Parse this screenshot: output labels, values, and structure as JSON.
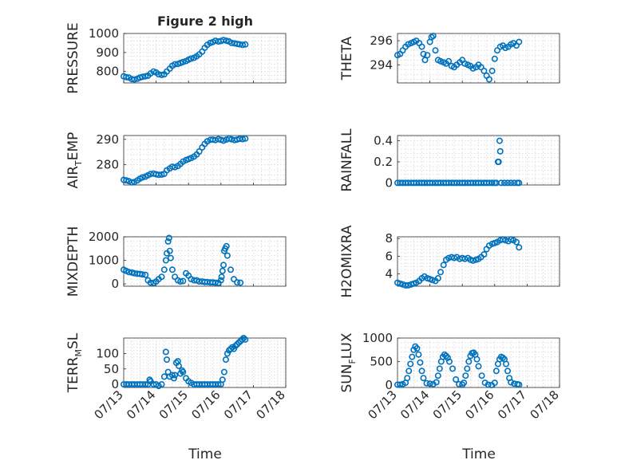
{
  "figure": {
    "title": "Figure 2 high",
    "date_ticks": [
      "07/13",
      "07/14",
      "07/15",
      "07/16",
      "07/17",
      "07/18"
    ],
    "xlabel": "Time"
  },
  "chart_data": [
    {
      "type": "scatter",
      "title": "Figure 2 high",
      "ylabel": "PRESSURE",
      "ylim": [
        740,
        1000
      ],
      "yticks": [
        800,
        900,
        1000
      ],
      "xlim": [
        "07/13",
        "07/18"
      ],
      "grid": true,
      "x": [
        0.0,
        0.08,
        0.16,
        0.25,
        0.33,
        0.42,
        0.5,
        0.58,
        0.67,
        0.75,
        0.83,
        0.92,
        1.0,
        1.08,
        1.17,
        1.25,
        1.33,
        1.42,
        1.5,
        1.58,
        1.67,
        1.75,
        1.83,
        1.92,
        2.0,
        2.08,
        2.17,
        2.25,
        2.33,
        2.42,
        2.5,
        2.58,
        2.67,
        2.75,
        2.83,
        2.92,
        3.0,
        3.08,
        3.17,
        3.25,
        3.33,
        3.42,
        3.5,
        3.58,
        3.67,
        3.75
      ],
      "y": [
        775,
        770,
        768,
        760,
        758,
        762,
        768,
        772,
        775,
        778,
        790,
        800,
        795,
        785,
        782,
        785,
        800,
        815,
        830,
        838,
        840,
        845,
        850,
        855,
        862,
        868,
        872,
        880,
        890,
        905,
        925,
        940,
        950,
        955,
        962,
        958,
        960,
        965,
        962,
        958,
        950,
        948,
        945,
        943,
        940,
        942
      ]
    },
    {
      "type": "scatter",
      "title": "",
      "ylabel": "THETA",
      "ylim": [
        292.5,
        296.6
      ],
      "yticks": [
        294,
        296
      ],
      "xlim": [
        "07/13",
        "07/18"
      ],
      "grid": true,
      "x": [
        0.0,
        0.08,
        0.16,
        0.25,
        0.33,
        0.42,
        0.5,
        0.58,
        0.67,
        0.75,
        0.8,
        0.85,
        0.92,
        1.0,
        1.05,
        1.1,
        1.17,
        1.25,
        1.33,
        1.42,
        1.5,
        1.58,
        1.67,
        1.75,
        1.83,
        1.92,
        2.0,
        2.08,
        2.17,
        2.25,
        2.33,
        2.42,
        2.5,
        2.58,
        2.67,
        2.75,
        2.83,
        2.92,
        3.0,
        3.08,
        3.17,
        3.25,
        3.33,
        3.42,
        3.5,
        3.58,
        3.67,
        3.75
      ],
      "y": [
        294.8,
        294.9,
        295.2,
        295.5,
        295.7,
        295.8,
        295.9,
        296.0,
        295.8,
        295.5,
        294.9,
        294.4,
        294.8,
        295.9,
        296.3,
        296.4,
        295.2,
        294.4,
        294.3,
        294.2,
        294.1,
        294.3,
        293.9,
        293.8,
        294.0,
        294.2,
        294.4,
        294.1,
        294.0,
        293.9,
        293.7,
        293.8,
        294.0,
        293.8,
        293.5,
        293.1,
        292.8,
        293.5,
        294.5,
        295.2,
        295.5,
        295.6,
        295.4,
        295.5,
        295.7,
        295.8,
        295.6,
        295.9
      ]
    },
    {
      "type": "scatter",
      "title": "",
      "ylabel": "AIR_TEMP",
      "ylim": [
        272,
        291.5
      ],
      "yticks": [
        280,
        290
      ],
      "xlim": [
        "07/13",
        "07/18"
      ],
      "grid": true,
      "x": [
        0.0,
        0.08,
        0.16,
        0.25,
        0.33,
        0.42,
        0.5,
        0.58,
        0.67,
        0.75,
        0.83,
        0.92,
        1.0,
        1.08,
        1.17,
        1.25,
        1.33,
        1.42,
        1.5,
        1.58,
        1.67,
        1.75,
        1.83,
        1.92,
        2.0,
        2.08,
        2.17,
        2.25,
        2.33,
        2.42,
        2.5,
        2.58,
        2.67,
        2.75,
        2.83,
        2.92,
        3.0,
        3.08,
        3.17,
        3.25,
        3.33,
        3.42,
        3.5,
        3.58,
        3.67,
        3.75
      ],
      "y": [
        274.0,
        273.8,
        273.5,
        273.0,
        273.2,
        273.8,
        274.5,
        275.0,
        275.3,
        275.8,
        276.3,
        276.5,
        276.2,
        276.0,
        276.1,
        276.4,
        277.8,
        278.5,
        279.2,
        279.0,
        279.5,
        280.3,
        281.2,
        281.8,
        282.2,
        282.6,
        283.2,
        284.0,
        285.2,
        286.8,
        288.2,
        289.2,
        289.8,
        289.9,
        289.7,
        290.1,
        289.8,
        289.5,
        289.9,
        290.3,
        290.0,
        289.7,
        289.9,
        290.2,
        290.1,
        290.3
      ]
    },
    {
      "type": "scatter",
      "title": "",
      "ylabel": "RAINFALL",
      "ylim": [
        -0.02,
        0.45
      ],
      "yticks": [
        0,
        0.2,
        0.4
      ],
      "xlim": [
        "07/13",
        "07/18"
      ],
      "grid": true,
      "x": [
        0.0,
        0.08,
        0.16,
        0.25,
        0.33,
        0.42,
        0.5,
        0.58,
        0.67,
        0.75,
        0.83,
        0.92,
        1.0,
        1.08,
        1.17,
        1.25,
        1.33,
        1.42,
        1.5,
        1.58,
        1.67,
        1.75,
        1.83,
        1.92,
        2.0,
        2.08,
        2.17,
        2.25,
        2.33,
        2.42,
        2.5,
        2.58,
        2.67,
        2.75,
        2.83,
        2.92,
        3.0,
        3.05,
        3.1,
        3.12,
        3.15,
        3.17,
        3.2,
        3.3,
        3.4,
        3.5,
        3.6,
        3.7,
        3.75
      ],
      "y": [
        0,
        0,
        0,
        0,
        0,
        0,
        0,
        0,
        0,
        0,
        0,
        0,
        0,
        0,
        0,
        0,
        0,
        0,
        0,
        0,
        0,
        0,
        0,
        0,
        0,
        0,
        0,
        0,
        0,
        0,
        0,
        0,
        0,
        0,
        0,
        0,
        0,
        0,
        0.2,
        0.2,
        0.4,
        0.3,
        0,
        0,
        0,
        0,
        0,
        0,
        0
      ]
    },
    {
      "type": "scatter",
      "title": "",
      "ylabel": "MIXDEPTH",
      "ylim": [
        -100,
        2000
      ],
      "yticks": [
        0,
        1000,
        2000
      ],
      "xlim": [
        "07/13",
        "07/18"
      ],
      "grid": true,
      "x": [
        0.0,
        0.08,
        0.16,
        0.25,
        0.33,
        0.42,
        0.5,
        0.58,
        0.67,
        0.75,
        0.83,
        0.92,
        1.0,
        1.08,
        1.17,
        1.25,
        1.3,
        1.33,
        1.37,
        1.4,
        1.42,
        1.45,
        1.5,
        1.58,
        1.67,
        1.75,
        1.83,
        1.92,
        2.0,
        2.08,
        2.17,
        2.25,
        2.33,
        2.42,
        2.5,
        2.58,
        2.67,
        2.75,
        2.83,
        2.92,
        3.0,
        3.02,
        3.05,
        3.08,
        3.1,
        3.13,
        3.17,
        3.2,
        3.3,
        3.4,
        3.5,
        3.6
      ],
      "y": [
        600,
        550,
        500,
        480,
        450,
        430,
        420,
        400,
        380,
        150,
        50,
        40,
        100,
        200,
        300,
        600,
        1000,
        1300,
        1800,
        1950,
        1400,
        1100,
        600,
        300,
        150,
        100,
        120,
        450,
        350,
        200,
        150,
        150,
        100,
        100,
        80,
        80,
        60,
        60,
        50,
        40,
        150,
        300,
        550,
        800,
        1400,
        1500,
        1600,
        1200,
        600,
        200,
        60,
        50
      ]
    },
    {
      "type": "scatter",
      "title": "",
      "ylabel": "H2OMIXRA",
      "ylim": [
        2.6,
        8.2
      ],
      "yticks": [
        4,
        6,
        8
      ],
      "xlim": [
        "07/13",
        "07/18"
      ],
      "grid": true,
      "x": [
        0.0,
        0.08,
        0.16,
        0.25,
        0.33,
        0.42,
        0.5,
        0.58,
        0.67,
        0.75,
        0.83,
        0.92,
        1.0,
        1.08,
        1.17,
        1.25,
        1.33,
        1.42,
        1.5,
        1.58,
        1.67,
        1.75,
        1.83,
        1.92,
        2.0,
        2.08,
        2.17,
        2.25,
        2.33,
        2.42,
        2.5,
        2.58,
        2.67,
        2.75,
        2.83,
        2.92,
        3.0,
        3.08,
        3.17,
        3.25,
        3.33,
        3.42,
        3.5,
        3.58,
        3.67,
        3.75
      ],
      "y": [
        3.0,
        2.9,
        2.8,
        2.7,
        2.7,
        2.8,
        2.9,
        3.0,
        3.2,
        3.5,
        3.7,
        3.5,
        3.4,
        3.3,
        3.2,
        3.5,
        4.2,
        5.0,
        5.6,
        5.8,
        5.9,
        5.8,
        5.9,
        5.7,
        5.8,
        5.7,
        5.8,
        5.6,
        5.5,
        5.6,
        5.7,
        5.9,
        6.2,
        6.8,
        7.2,
        7.4,
        7.5,
        7.6,
        7.8,
        7.9,
        7.8,
        7.7,
        7.9,
        7.8,
        7.6,
        7.0
      ]
    },
    {
      "type": "scatter",
      "title": "",
      "ylabel": "TERR_MSL",
      "ylim": [
        -10,
        150
      ],
      "yticks": [
        0,
        50,
        100
      ],
      "xlim": [
        "07/13",
        "07/18"
      ],
      "grid": true,
      "x": [
        0.0,
        0.08,
        0.16,
        0.25,
        0.33,
        0.42,
        0.5,
        0.58,
        0.67,
        0.75,
        0.8,
        0.83,
        0.92,
        1.0,
        1.08,
        1.17,
        1.25,
        1.3,
        1.33,
        1.37,
        1.42,
        1.5,
        1.55,
        1.58,
        1.62,
        1.67,
        1.7,
        1.75,
        1.8,
        1.83,
        1.92,
        2.0,
        2.08,
        2.17,
        2.25,
        2.33,
        2.42,
        2.5,
        2.58,
        2.67,
        2.75,
        2.83,
        2.92,
        3.0,
        3.05,
        3.1,
        3.15,
        3.2,
        3.25,
        3.3,
        3.35,
        3.4,
        3.45,
        3.5,
        3.55,
        3.6,
        3.65,
        3.7,
        3.75
      ],
      "y": [
        0,
        0,
        0,
        0,
        0,
        0,
        0,
        0,
        0,
        0,
        15,
        10,
        0,
        0,
        -5,
        0,
        25,
        105,
        80,
        40,
        25,
        30,
        20,
        30,
        70,
        75,
        60,
        35,
        45,
        40,
        20,
        10,
        5,
        0,
        0,
        0,
        0,
        0,
        0,
        0,
        0,
        0,
        0,
        0,
        15,
        40,
        80,
        100,
        110,
        115,
        120,
        115,
        125,
        130,
        135,
        140,
        145,
        150,
        145
      ]
    },
    {
      "type": "scatter",
      "title": "",
      "ylabel": "SUN_FLUX",
      "ylim": [
        -50,
        1000
      ],
      "yticks": [
        0,
        500,
        1000
      ],
      "xlim": [
        "07/13",
        "07/18"
      ],
      "grid": true,
      "x": [
        0.0,
        0.08,
        0.16,
        0.25,
        0.3,
        0.35,
        0.4,
        0.45,
        0.5,
        0.55,
        0.6,
        0.65,
        0.7,
        0.75,
        0.8,
        0.9,
        1.0,
        1.1,
        1.2,
        1.25,
        1.3,
        1.35,
        1.4,
        1.45,
        1.5,
        1.55,
        1.6,
        1.7,
        1.8,
        1.9,
        2.0,
        2.05,
        2.1,
        2.15,
        2.2,
        2.25,
        2.3,
        2.35,
        2.4,
        2.45,
        2.5,
        2.6,
        2.7,
        2.8,
        2.9,
        3.0,
        3.05,
        3.1,
        3.15,
        3.2,
        3.25,
        3.3,
        3.35,
        3.4,
        3.45,
        3.5,
        3.6,
        3.7,
        3.75
      ],
      "y": [
        10,
        10,
        20,
        50,
        150,
        300,
        450,
        600,
        750,
        820,
        780,
        650,
        480,
        300,
        150,
        40,
        30,
        20,
        60,
        200,
        350,
        500,
        600,
        650,
        620,
        580,
        500,
        350,
        120,
        20,
        10,
        50,
        200,
        350,
        500,
        620,
        680,
        690,
        650,
        550,
        400,
        200,
        50,
        10,
        0,
        50,
        300,
        450,
        550,
        600,
        580,
        550,
        450,
        300,
        150,
        60,
        30,
        20,
        10
      ]
    }
  ]
}
